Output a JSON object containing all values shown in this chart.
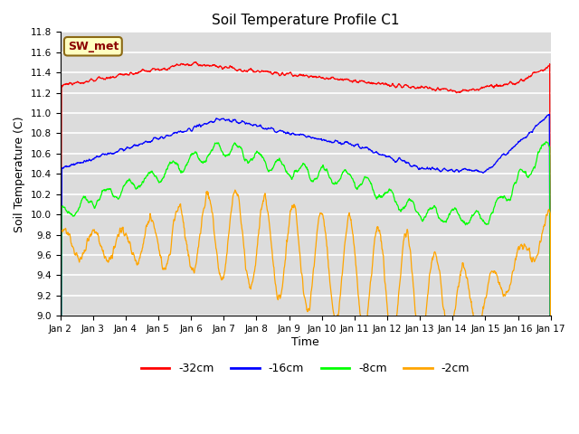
{
  "title": "Soil Temperature Profile C1",
  "xlabel": "Time",
  "ylabel": "Soil Temperature (C)",
  "ylim": [
    9.0,
    11.8
  ],
  "annotation_text": "SW_met",
  "annotation_color": "#8B0000",
  "annotation_bg": "#FFFFC0",
  "annotation_border": "#8B6914",
  "background_color": "#DCDCDC",
  "grid_color": "white",
  "series_colors": {
    "-32cm": "red",
    "-16cm": "blue",
    "-8cm": "lime",
    "-2cm": "orange"
  },
  "x_tick_labels": [
    "Jan 2",
    "Jan 3",
    "Jan 4",
    "Jan 5",
    "Jan 6",
    "Jan 7",
    "Jan 8",
    "Jan 9",
    "Jan 10",
    "Jan 11",
    "Jan 12",
    "Jan 13",
    "Jan 14",
    "Jan 15",
    "Jan 16",
    "Jan 17"
  ],
  "legend_labels": [
    "-32cm",
    "-16cm",
    "-8cm",
    "-2cm"
  ],
  "legend_colors": [
    "red",
    "blue",
    "lime",
    "orange"
  ],
  "yticks": [
    9.0,
    9.2,
    9.4,
    9.6,
    9.8,
    10.0,
    10.2,
    10.4,
    10.6,
    10.8,
    11.0,
    11.2,
    11.4,
    11.6,
    11.8
  ]
}
